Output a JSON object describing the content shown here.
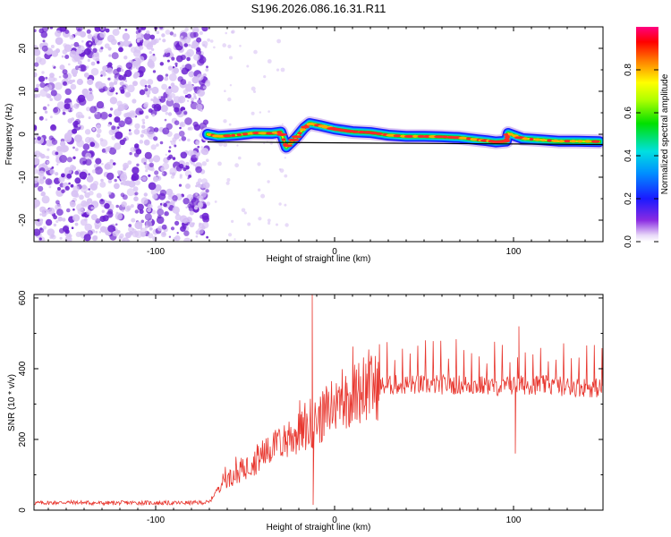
{
  "title": "S196.2026.086.16.31.R11",
  "colors": {
    "snr_line": "#e8372f",
    "speckle_dark": "#6a1fd0",
    "speckle_light": "#d8c3f4",
    "fit_line": "#000000",
    "axis": "#000000"
  },
  "chart_data": [
    {
      "type": "heatmap",
      "title": "S196.2026.086.16.31.R11",
      "xlabel": "Height of straight line (km)",
      "ylabel": "Frequency (Hz)",
      "xlim": [
        -168,
        150
      ],
      "ylim": [
        -25,
        25
      ],
      "x_ticks": [
        -100,
        0,
        100
      ],
      "x_tick_labels": [
        "-100",
        "0",
        "100"
      ],
      "y_ticks": [
        -20,
        -10,
        0,
        10,
        20
      ],
      "y_tick_labels": [
        "-20",
        "-10",
        "0",
        "10",
        "20"
      ],
      "noise_region_end_km": -71,
      "signal_track": {
        "x": [
          -71,
          -65,
          -55,
          -45,
          -35,
          -30,
          -27,
          -22,
          -17,
          -14,
          -8,
          0,
          10,
          20,
          30,
          40,
          50,
          60,
          70,
          80,
          85,
          90,
          96,
          97,
          105,
          115,
          125,
          135,
          148
        ],
        "freq": [
          0,
          -0.5,
          -0.2,
          0.3,
          0.2,
          0.5,
          -3,
          -1,
          1.5,
          2.5,
          2.0,
          1.2,
          0.6,
          0.4,
          -0.2,
          -0.5,
          -0.5,
          -0.6,
          -0.8,
          -1.3,
          -1.5,
          -1.8,
          -1.6,
          0.2,
          -1.0,
          -1.3,
          -1.6,
          -1.6,
          -1.7
        ]
      },
      "fit_line": {
        "x": [
          -71,
          150
        ],
        "freq": [
          -1.8,
          -2.4
        ]
      },
      "colorbar": {
        "label": "Normalized spectral amplitude",
        "range": [
          0,
          1
        ],
        "ticks": [
          0.0,
          0.2,
          0.4,
          0.6,
          0.8
        ],
        "tick_labels": [
          "0.0",
          "0.2",
          "0.4",
          "0.6",
          "0.8"
        ]
      }
    },
    {
      "type": "line",
      "xlabel": "Height of straight line (km)",
      "ylabel": "SNR (10 * v/v)",
      "xlim": [
        -168,
        150
      ],
      "ylim": [
        0,
        610
      ],
      "x_ticks": [
        -100,
        0,
        100
      ],
      "x_tick_labels": [
        "-100",
        "0",
        "100"
      ],
      "y_ticks": [
        0,
        200,
        400,
        600
      ],
      "y_tick_labels": [
        "0",
        "200",
        "400",
        "600"
      ],
      "series": [
        {
          "name": "SNR",
          "x": [
            -168,
            -150,
            -130,
            -110,
            -90,
            -70,
            -63,
            -55,
            -45,
            -35,
            -25,
            -15,
            -5,
            5,
            15,
            25,
            35,
            50,
            70,
            90,
            110,
            130,
            150
          ],
          "values": [
            20,
            22,
            20,
            21,
            20,
            22,
            80,
            100,
            135,
            175,
            200,
            230,
            270,
            310,
            340,
            350,
            355,
            355,
            355,
            350,
            355,
            350,
            345
          ],
          "spikes": [
            {
              "x": -12.5,
              "value": 610
            },
            {
              "x": -12,
              "value": 15
            },
            {
              "x": 101,
              "value": 160
            },
            {
              "x": 103,
              "value": 520
            }
          ]
        }
      ]
    }
  ]
}
